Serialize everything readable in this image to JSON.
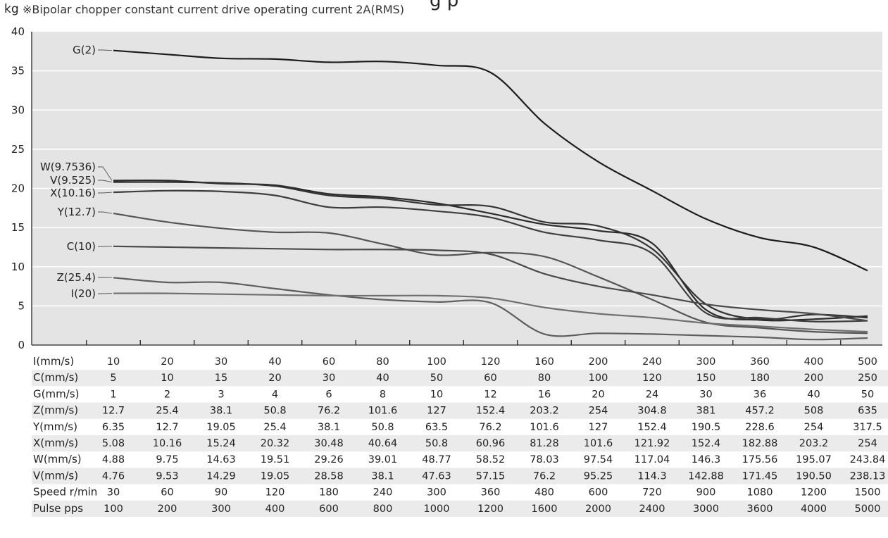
{
  "header": {
    "title_fragment": "g   p",
    "y_unit": "kg",
    "subtitle": "※Bipolar chopper constant current drive operating current  2A(RMS)"
  },
  "chart_data": {
    "type": "line",
    "ylabel": "kg",
    "ylim": [
      0,
      40
    ],
    "yticks": [
      0,
      5,
      10,
      15,
      20,
      25,
      30,
      35,
      40
    ],
    "grid": true,
    "x_positions": 15,
    "series": [
      {
        "name": "G(2)",
        "color": "#1c1c1c",
        "values": [
          37.6,
          37.1,
          36.6,
          36.5,
          36.1,
          36.2,
          35.7,
          34.8,
          28.3,
          23.4,
          19.7,
          16.1,
          13.7,
          12.5,
          9.5
        ]
      },
      {
        "name": "W(9.7536)",
        "color": "#2a2a2a",
        "values": [
          21.0,
          21.0,
          20.6,
          20.4,
          19.3,
          18.9,
          18.1,
          16.8,
          15.4,
          14.6,
          13.0,
          4.5,
          3.2,
          3.3,
          3.7
        ]
      },
      {
        "name": "V(9.525)",
        "color": "#333333",
        "values": [
          20.8,
          20.8,
          20.7,
          20.3,
          19.1,
          18.7,
          17.9,
          17.7,
          15.7,
          15.2,
          12.3,
          5.2,
          3.3,
          3.9,
          3.5
        ]
      },
      {
        "name": "X(10.16)",
        "color": "#3d3d3d",
        "values": [
          19.5,
          19.7,
          19.6,
          19.1,
          17.6,
          17.6,
          17.1,
          16.3,
          14.4,
          13.4,
          11.7,
          4.1,
          3.5,
          3.0,
          3.1
        ]
      },
      {
        "name": "Y(12.7)",
        "color": "#555555",
        "values": [
          16.8,
          15.7,
          14.9,
          14.4,
          14.3,
          12.9,
          11.5,
          11.8,
          11.3,
          8.7,
          5.8,
          2.9,
          2.2,
          1.7,
          1.5
        ]
      },
      {
        "name": "C(10)",
        "color": "#4a4a4a",
        "values": [
          12.6,
          12.5,
          12.4,
          12.3,
          12.2,
          12.2,
          12.1,
          11.6,
          9.1,
          7.5,
          6.4,
          5.2,
          4.5,
          4.0,
          3.1
        ]
      },
      {
        "name": "Z(25.4)",
        "color": "#5e5e5e",
        "values": [
          8.6,
          8.0,
          8.0,
          7.2,
          6.4,
          5.8,
          5.5,
          5.4,
          1.4,
          1.5,
          1.4,
          1.2,
          1.0,
          0.7,
          0.9
        ]
      },
      {
        "name": "I(20)",
        "color": "#707070",
        "values": [
          6.6,
          6.6,
          6.5,
          6.4,
          6.3,
          6.3,
          6.3,
          6.0,
          4.8,
          4.0,
          3.5,
          2.8,
          2.4,
          2.0,
          1.7
        ]
      }
    ],
    "table": [
      {
        "label": "I(mm/s)",
        "values": [
          "10",
          "20",
          "30",
          "40",
          "60",
          "80",
          "100",
          "120",
          "160",
          "200",
          "240",
          "300",
          "360",
          "400",
          "500"
        ]
      },
      {
        "label": "C(mm/s)",
        "values": [
          "5",
          "10",
          "15",
          "20",
          "30",
          "40",
          "50",
          "60",
          "80",
          "100",
          "120",
          "150",
          "180",
          "200",
          "250"
        ]
      },
      {
        "label": "G(mm/s)",
        "values": [
          "1",
          "2",
          "3",
          "4",
          "6",
          "8",
          "10",
          "12",
          "16",
          "20",
          "24",
          "30",
          "36",
          "40",
          "50"
        ]
      },
      {
        "label": "Z(mm/s)",
        "values": [
          "12.7",
          "25.4",
          "38.1",
          "50.8",
          "76.2",
          "101.6",
          "127",
          "152.4",
          "203.2",
          "254",
          "304.8",
          "381",
          "457.2",
          "508",
          "635"
        ]
      },
      {
        "label": "Y(mm/s)",
        "values": [
          "6.35",
          "12.7",
          "19.05",
          "25.4",
          "38.1",
          "50.8",
          "63.5",
          "76.2",
          "101.6",
          "127",
          "152.4",
          "190.5",
          "228.6",
          "254",
          "317.5"
        ]
      },
      {
        "label": "X(mm/s)",
        "values": [
          "5.08",
          "10.16",
          "15.24",
          "20.32",
          "30.48",
          "40.64",
          "50.8",
          "60.96",
          "81.28",
          "101.6",
          "121.92",
          "152.4",
          "182.88",
          "203.2",
          "254"
        ]
      },
      {
        "label": "W(mm/s)",
        "values": [
          "4.88",
          "9.75",
          "14.63",
          "19.51",
          "29.26",
          "39.01",
          "48.77",
          "58.52",
          "78.03",
          "97.54",
          "117.04",
          "146.3",
          "175.56",
          "195.07",
          "243.84"
        ]
      },
      {
        "label": "V(mm/s)",
        "values": [
          "4.76",
          "9.53",
          "14.29",
          "19.05",
          "28.58",
          "38.1",
          "47.63",
          "57.15",
          "76.2",
          "95.25",
          "114.3",
          "142.88",
          "171.45",
          "190.50",
          "238.13"
        ]
      },
      {
        "label": "Speed r/min",
        "values": [
          "30",
          "60",
          "90",
          "120",
          "180",
          "240",
          "300",
          "360",
          "480",
          "600",
          "720",
          "900",
          "1080",
          "1200",
          "1500"
        ]
      },
      {
        "label": "Pulse pps",
        "values": [
          "100",
          "200",
          "300",
          "400",
          "600",
          "800",
          "1000",
          "1200",
          "1600",
          "2000",
          "2400",
          "3000",
          "3600",
          "4000",
          "5000"
        ]
      }
    ]
  },
  "colors": {
    "plot_background": "#e4e4e4",
    "grid": "#ffffff",
    "row_shade": "#ebebeb",
    "axis": "#222222"
  }
}
